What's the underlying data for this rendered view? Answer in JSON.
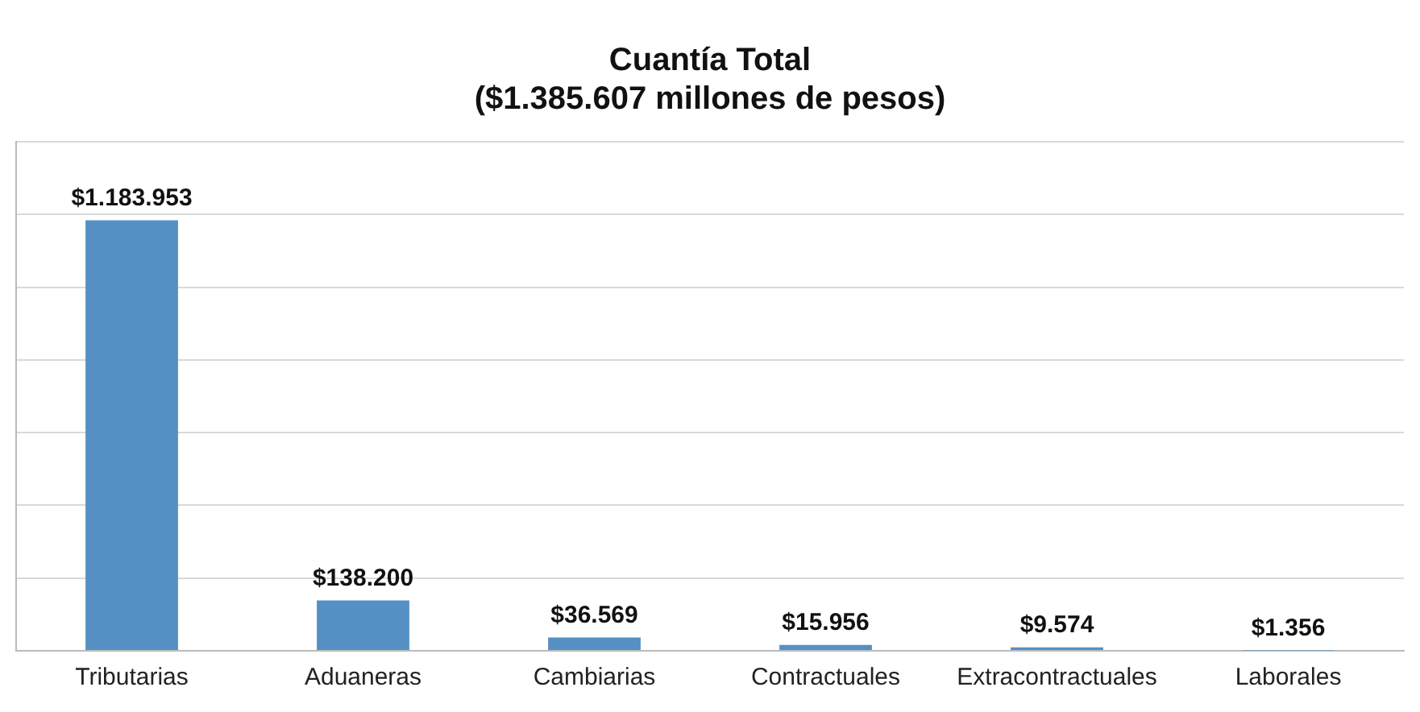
{
  "chart_data": {
    "type": "bar",
    "title": "Cuantía Total\n($1.385.607 millones de pesos)",
    "categories": [
      "Tributarias",
      "Aduaneras",
      "Cambiarias",
      "Contractuales",
      "Extracontractuales",
      "Laborales"
    ],
    "values": [
      1183953,
      138200,
      36569,
      15956,
      9574,
      1356
    ],
    "value_labels": [
      "$1.183.953",
      "$138.200",
      "$36.569",
      "$15.956",
      "$9.574",
      "$1.356"
    ],
    "color": "#5590c4",
    "ylim": [
      0,
      1400000
    ],
    "yticks": [
      {
        "value": 0,
        "label": null
      },
      {
        "value": 200000,
        "label": null
      },
      {
        "value": 400000,
        "label": null
      },
      {
        "value": 600000,
        "label": null
      },
      {
        "value": 800000,
        "label": null
      },
      {
        "value": 1000000,
        "label": null
      },
      {
        "value": 1200000,
        "label": null
      },
      {
        "value": 1400000,
        "label": null
      }
    ],
    "tick_labels": "x",
    "grid": "y",
    "legend": false
  }
}
